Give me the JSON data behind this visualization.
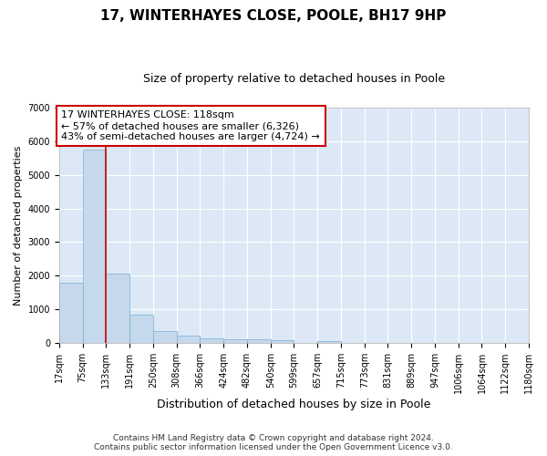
{
  "title": "17, WINTERHAYES CLOSE, POOLE, BH17 9HP",
  "subtitle": "Size of property relative to detached houses in Poole",
  "xlabel": "Distribution of detached houses by size in Poole",
  "ylabel": "Number of detached properties",
  "bin_labels": [
    "17sqm",
    "75sqm",
    "133sqm",
    "191sqm",
    "250sqm",
    "308sqm",
    "366sqm",
    "424sqm",
    "482sqm",
    "540sqm",
    "599sqm",
    "657sqm",
    "715sqm",
    "773sqm",
    "831sqm",
    "889sqm",
    "947sqm",
    "1006sqm",
    "1064sqm",
    "1122sqm",
    "1180sqm"
  ],
  "bar_heights": [
    1790,
    5760,
    2060,
    840,
    370,
    230,
    130,
    110,
    110,
    85,
    0,
    70,
    0,
    0,
    0,
    0,
    0,
    0,
    0,
    0
  ],
  "bar_color": "#c5d8ec",
  "bar_edge_color": "#7aafd4",
  "vline_color": "#cc0000",
  "vline_x": 2.0,
  "ylim": [
    0,
    7000
  ],
  "yticks": [
    0,
    1000,
    2000,
    3000,
    4000,
    5000,
    6000,
    7000
  ],
  "annotation_title": "17 WINTERHAYES CLOSE: 118sqm",
  "annotation_line1": "← 57% of detached houses are smaller (6,326)",
  "annotation_line2": "43% of semi-detached houses are larger (4,724) →",
  "footer_line1": "Contains HM Land Registry data © Crown copyright and database right 2024.",
  "footer_line2": "Contains public sector information licensed under the Open Government Licence v3.0.",
  "background_color": "#ffffff",
  "plot_bg_color": "#dce8f5",
  "grid_color": "#ffffff",
  "title_fontsize": 11,
  "subtitle_fontsize": 9,
  "ylabel_fontsize": 8,
  "xlabel_fontsize": 9,
  "tick_fontsize": 7,
  "annotation_fontsize": 8,
  "footer_fontsize": 6.5
}
